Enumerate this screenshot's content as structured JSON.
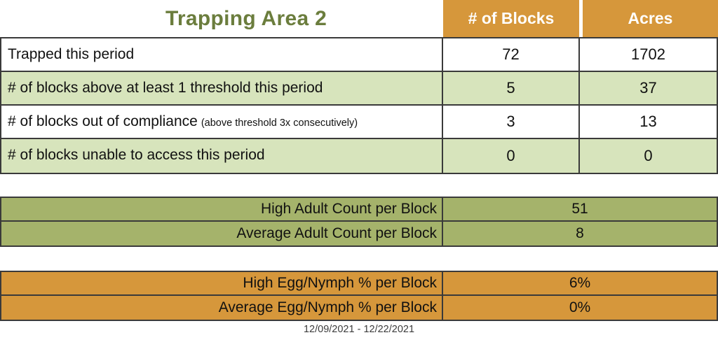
{
  "title": "Trapping Area 2",
  "columns": {
    "blocks": "# of Blocks",
    "acres": "Acres"
  },
  "main_rows": [
    {
      "label": "Trapped this period",
      "note": "",
      "blocks": "72",
      "acres": "1702",
      "shaded": false
    },
    {
      "label": "# of blocks above at least 1 threshold this period",
      "note": "",
      "blocks": "5",
      "acres": "37",
      "shaded": true
    },
    {
      "label": "# of blocks out of compliance",
      "note": "(above threshold 3x consecutively)",
      "blocks": "3",
      "acres": "13",
      "shaded": false
    },
    {
      "label": "# of blocks unable to access this period",
      "note": "",
      "blocks": "0",
      "acres": "0",
      "shaded": true
    }
  ],
  "adult_section": {
    "rows": [
      {
        "label": "High Adult Count per Block",
        "value": "51"
      },
      {
        "label": "Average Adult Count per Block",
        "value": "8"
      }
    ]
  },
  "egg_section": {
    "rows": [
      {
        "label": "High Egg/Nymph % per Block",
        "value": "6%"
      },
      {
        "label": "Average Egg/Nymph % per Block",
        "value": "0%"
      }
    ]
  },
  "date_range": "12/09/2021 - 12/22/2021",
  "colors": {
    "header_orange": "#d6973b",
    "shaded_row_green": "#d7e4bc",
    "adult_section_olive": "#a5b36b",
    "title_green": "#6b7d3d",
    "header_text": "#ffffff",
    "border": "#3a3a3a"
  }
}
